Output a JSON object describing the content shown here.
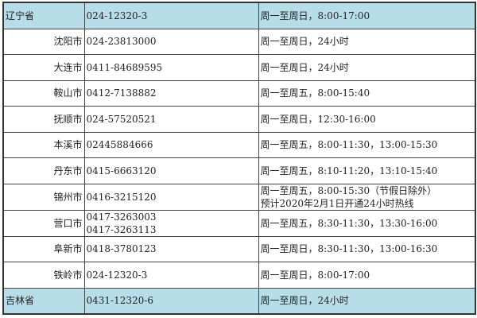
{
  "colors": {
    "province_row_bg": "#b7dde8",
    "border": "#444444"
  },
  "rows": [
    {
      "type": "province",
      "name": "辽宁省",
      "phones": [
        "024-12320-3"
      ],
      "hours": [
        "周一至周日，8:00-17:00"
      ]
    },
    {
      "type": "city",
      "name": "沈阳市",
      "phones": [
        "024-23813000"
      ],
      "hours": [
        "周一至周日，24小时"
      ]
    },
    {
      "type": "city",
      "name": "大连市",
      "phones": [
        "0411-84689595"
      ],
      "hours": [
        "周一至周日，24小时"
      ]
    },
    {
      "type": "city",
      "name": "鞍山市",
      "phones": [
        "0412-7138882"
      ],
      "hours": [
        "周一至周五，8:00-15:40"
      ]
    },
    {
      "type": "city",
      "name": "抚顺市",
      "phones": [
        "024-57520521"
      ],
      "hours": [
        "周一至周日，12:30-16:00"
      ]
    },
    {
      "type": "city",
      "name": "本溪市",
      "phones": [
        "02445884666"
      ],
      "hours": [
        "周一至周五，8:00-11:30，13:00-15:30"
      ]
    },
    {
      "type": "city",
      "name": "丹东市",
      "phones": [
        "0415-6663120"
      ],
      "hours": [
        "周一至周五，8:10-11:20，13:10-15:40"
      ]
    },
    {
      "type": "city",
      "name": "锦州市",
      "phones": [
        "0416-3215120"
      ],
      "hours": [
        "周一至周五，8:00-15:30（节假日除外）",
        "预计2020年2月1日开通24小时热线"
      ]
    },
    {
      "type": "city",
      "name": "营口市",
      "phones": [
        "0417-3263003",
        "0417-3263113"
      ],
      "hours": [
        "周一至周五，8:30-11:30，13:30-16:00"
      ]
    },
    {
      "type": "city",
      "name": "阜新市",
      "phones": [
        "0418-3780123"
      ],
      "hours": [
        "周一至周日，8:30-11:30，13:00-16:30"
      ]
    },
    {
      "type": "city",
      "name": "铁岭市",
      "phones": [
        "024-12320-3"
      ],
      "hours": [
        "周一至周日，8:00-17:00"
      ]
    },
    {
      "type": "province",
      "name": "吉林省",
      "phones": [
        "0431-12320-6"
      ],
      "hours": [
        "周一至周日，24小时"
      ]
    }
  ]
}
